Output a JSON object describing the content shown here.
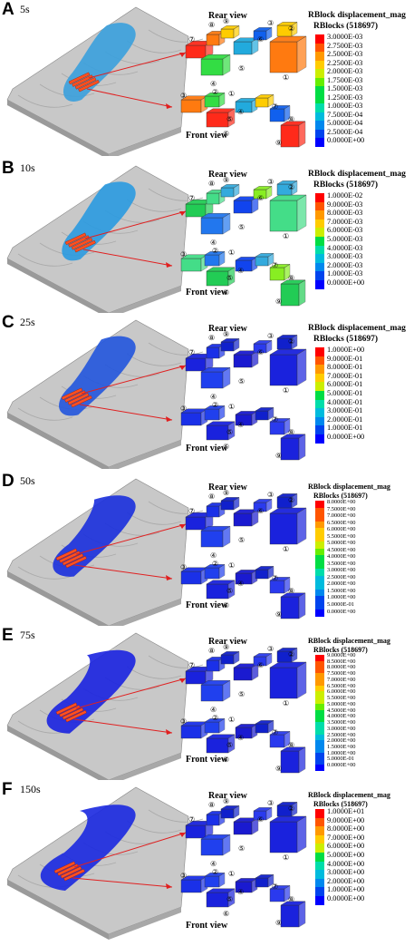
{
  "common": {
    "rear_view": "Rear view",
    "front_view": "Front view",
    "legend_title": "RBlock displacement_mag",
    "legend_subtitle": "RBlocks (518697)",
    "block_ids": [
      "①",
      "②",
      "③",
      "④",
      "⑤",
      "⑥",
      "⑦",
      "⑧",
      "⑨"
    ]
  },
  "colors": [
    "#ff0000",
    "#ff5500",
    "#ff9900",
    "#ffcc00",
    "#ccee00",
    "#66ee00",
    "#00dd44",
    "#00ddaa",
    "#00bbdd",
    "#0088ee",
    "#0044ee",
    "#0000ff"
  ],
  "panels": [
    {
      "label": "A",
      "time": "5s",
      "ticks": [
        "3.0000E-03",
        "2.7500E-03",
        "2.5000E-03",
        "2.2500E-03",
        "2.0000E-03",
        "1.7500E-03",
        "1.5000E-03",
        "1.2500E-03",
        "1.0000E-03",
        "7.5000E-04",
        "5.0000E-04",
        "2.5000E-04",
        "0.0000E+00"
      ]
    },
    {
      "label": "B",
      "time": "10s",
      "ticks": [
        "1.0000E-02",
        "9.0000E-03",
        "8.0000E-03",
        "7.0000E-03",
        "6.0000E-03",
        "5.0000E-03",
        "4.0000E-03",
        "3.0000E-03",
        "2.0000E-03",
        "1.0000E-03",
        "0.0000E+00"
      ]
    },
    {
      "label": "C",
      "time": "25s",
      "ticks": [
        "1.0000E+00",
        "9.0000E-01",
        "8.0000E-01",
        "7.0000E-01",
        "6.0000E-01",
        "5.0000E-01",
        "4.0000E-01",
        "3.0000E-01",
        "2.0000E-01",
        "1.0000E-01",
        "0.0000E+00"
      ]
    },
    {
      "label": "D",
      "time": "50s",
      "ticks": [
        "8.0000E+00",
        "7.5000E+00",
        "7.0000E+00",
        "6.5000E+00",
        "6.0000E+00",
        "5.5000E+00",
        "5.0000E+00",
        "4.5000E+00",
        "4.0000E+00",
        "3.5000E+00",
        "3.0000E+00",
        "2.5000E+00",
        "2.0000E+00",
        "1.5000E+00",
        "1.0000E+00",
        "5.0000E-01",
        "0.0000E+00"
      ]
    },
    {
      "label": "E",
      "time": "75s",
      "ticks": [
        "9.0000E+00",
        "8.5000E+00",
        "8.0000E+00",
        "7.5000E+00",
        "7.0000E+00",
        "6.5000E+00",
        "6.0000E+00",
        "5.5000E+00",
        "5.0000E+00",
        "4.5000E+00",
        "4.0000E+00",
        "3.5000E+00",
        "3.0000E+00",
        "2.5000E+00",
        "2.0000E+00",
        "1.5000E+00",
        "1.0000E+00",
        "5.0000E-01",
        "0.0000E+00"
      ]
    },
    {
      "label": "F",
      "time": "150s",
      "ticks": [
        "1.0000E+01",
        "9.0000E+00",
        "8.0000E+00",
        "7.0000E+00",
        "6.0000E+00",
        "5.0000E+00",
        "4.0000E+00",
        "3.0000E+00",
        "2.0000E+00",
        "1.0000E+00",
        "0.0000E+00"
      ]
    }
  ]
}
